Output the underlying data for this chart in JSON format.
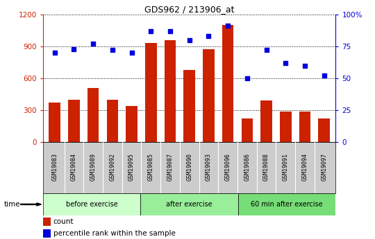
{
  "title": "GDS962 / 213906_at",
  "categories": [
    "GSM19083",
    "GSM19084",
    "GSM19089",
    "GSM19092",
    "GSM19095",
    "GSM19085",
    "GSM19087",
    "GSM19090",
    "GSM19093",
    "GSM19096",
    "GSM19086",
    "GSM19088",
    "GSM19091",
    "GSM19094",
    "GSM19097"
  ],
  "counts": [
    370,
    400,
    510,
    400,
    340,
    930,
    960,
    680,
    870,
    1100,
    220,
    390,
    290,
    290,
    220
  ],
  "percentiles": [
    70,
    73,
    77,
    72,
    70,
    87,
    87,
    80,
    83,
    91,
    50,
    72,
    62,
    60,
    52
  ],
  "groups": [
    {
      "label": "before exercise",
      "start": 0,
      "end": 5,
      "color": "#ccffcc"
    },
    {
      "label": "after exercise",
      "start": 5,
      "end": 10,
      "color": "#99ee99"
    },
    {
      "label": "60 min after exercise",
      "start": 10,
      "end": 15,
      "color": "#77dd77"
    }
  ],
  "bar_color": "#cc2200",
  "dot_color": "#0000dd",
  "ylim_left": [
    0,
    1200
  ],
  "ylim_right": [
    0,
    100
  ],
  "yticks_left": [
    0,
    300,
    600,
    900,
    1200
  ],
  "yticks_right": [
    0,
    25,
    50,
    75,
    100
  ],
  "ylabel_left_color": "#cc2200",
  "ylabel_right_color": "#0000dd",
  "grid_color": "#000000",
  "bg_color": "#ffffff",
  "tick_area_color": "#cccccc",
  "legend_count_label": "count",
  "legend_pct_label": "percentile rank within the sample",
  "time_label": "time"
}
